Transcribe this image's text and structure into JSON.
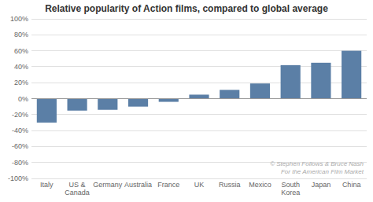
{
  "chart_data": {
    "type": "bar",
    "title": "Relative popularity of Action films, compared to global average",
    "categories": [
      "Italy",
      "US &\nCanada",
      "Germany",
      "Australia",
      "France",
      "UK",
      "Russia",
      "Mexico",
      "South\nKorea",
      "Japan",
      "China"
    ],
    "values": [
      -30,
      -15,
      -14,
      -10,
      -4,
      5,
      11,
      19,
      42,
      45,
      60
    ],
    "color": "#5b7fa6",
    "ylim": [
      -100,
      100
    ],
    "yticks": [
      {
        "value": -100,
        "label": "-100%"
      },
      {
        "value": -80,
        "label": "-80%"
      },
      {
        "value": -60,
        "label": "-60%"
      },
      {
        "value": -40,
        "label": "-40%"
      },
      {
        "value": -20,
        "label": "-20%"
      },
      {
        "value": 0,
        "label": "0%"
      },
      {
        "value": 20,
        "label": "20%"
      },
      {
        "value": 40,
        "label": "40%"
      },
      {
        "value": 60,
        "label": "60%"
      },
      {
        "value": 80,
        "label": "80%"
      },
      {
        "value": 100,
        "label": "100%"
      }
    ],
    "grid": true,
    "annotations": [
      "© Stephen Follows & Bruce Nash",
      "For the American Film Market"
    ]
  }
}
